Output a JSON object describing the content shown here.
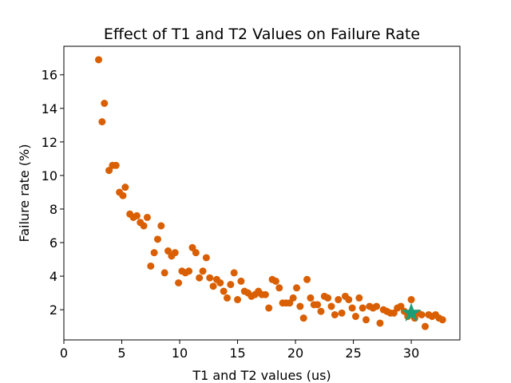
{
  "chart_data": {
    "type": "scatter",
    "title": "Effect of T1 and T2 Values on Failure Rate",
    "xlabel": "T1 and T2 values (us)",
    "ylabel": "Failure rate (%)",
    "xlim": [
      0,
      34.2
    ],
    "ylim": [
      0.2,
      17.7
    ],
    "xticks": [
      0,
      5,
      10,
      15,
      20,
      25,
      30
    ],
    "yticks": [
      2,
      4,
      6,
      8,
      10,
      12,
      14,
      16
    ],
    "grid": false,
    "series": [
      {
        "marker": "circle",
        "color": "#d95f02",
        "points": [
          [
            3.0,
            16.9
          ],
          [
            3.3,
            13.2
          ],
          [
            3.5,
            14.3
          ],
          [
            3.9,
            10.3
          ],
          [
            4.2,
            10.6
          ],
          [
            4.5,
            10.6
          ],
          [
            4.8,
            9.0
          ],
          [
            5.1,
            8.8
          ],
          [
            5.3,
            9.3
          ],
          [
            5.7,
            7.7
          ],
          [
            6.0,
            7.5
          ],
          [
            6.3,
            7.6
          ],
          [
            6.6,
            7.2
          ],
          [
            6.9,
            7.0
          ],
          [
            7.2,
            7.5
          ],
          [
            7.5,
            4.6
          ],
          [
            7.8,
            5.4
          ],
          [
            8.1,
            6.2
          ],
          [
            8.4,
            7.0
          ],
          [
            8.7,
            4.2
          ],
          [
            9.0,
            5.5
          ],
          [
            9.3,
            5.2
          ],
          [
            9.6,
            5.4
          ],
          [
            9.9,
            3.6
          ],
          [
            10.2,
            4.3
          ],
          [
            10.5,
            4.2
          ],
          [
            10.8,
            4.3
          ],
          [
            11.1,
            5.7
          ],
          [
            11.4,
            5.4
          ],
          [
            11.7,
            3.9
          ],
          [
            12.0,
            4.3
          ],
          [
            12.3,
            5.1
          ],
          [
            12.6,
            3.9
          ],
          [
            12.9,
            3.4
          ],
          [
            13.2,
            3.8
          ],
          [
            13.5,
            3.6
          ],
          [
            13.8,
            3.1
          ],
          [
            14.1,
            2.7
          ],
          [
            14.4,
            3.5
          ],
          [
            14.7,
            4.2
          ],
          [
            15.0,
            2.6
          ],
          [
            15.3,
            3.7
          ],
          [
            15.6,
            3.1
          ],
          [
            15.9,
            3.0
          ],
          [
            16.2,
            2.8
          ],
          [
            16.5,
            2.9
          ],
          [
            16.8,
            3.1
          ],
          [
            17.1,
            2.9
          ],
          [
            17.4,
            2.9
          ],
          [
            17.7,
            2.1
          ],
          [
            18.0,
            3.8
          ],
          [
            18.3,
            3.7
          ],
          [
            18.6,
            3.3
          ],
          [
            18.9,
            2.4
          ],
          [
            19.2,
            2.4
          ],
          [
            19.5,
            2.4
          ],
          [
            19.8,
            2.7
          ],
          [
            20.1,
            3.3
          ],
          [
            20.4,
            2.2
          ],
          [
            20.7,
            1.5
          ],
          [
            21.0,
            3.8
          ],
          [
            21.3,
            2.7
          ],
          [
            21.6,
            2.3
          ],
          [
            21.9,
            2.3
          ],
          [
            22.2,
            1.9
          ],
          [
            22.5,
            2.8
          ],
          [
            22.8,
            2.7
          ],
          [
            23.1,
            2.2
          ],
          [
            23.4,
            1.7
          ],
          [
            23.7,
            2.6
          ],
          [
            24.0,
            1.8
          ],
          [
            24.3,
            2.8
          ],
          [
            24.6,
            2.6
          ],
          [
            24.9,
            2.1
          ],
          [
            25.2,
            1.6
          ],
          [
            25.5,
            2.7
          ],
          [
            25.8,
            2.1
          ],
          [
            26.1,
            1.4
          ],
          [
            26.4,
            2.2
          ],
          [
            26.7,
            2.1
          ],
          [
            27.0,
            2.2
          ],
          [
            27.3,
            1.2
          ],
          [
            27.6,
            2.0
          ],
          [
            27.9,
            1.9
          ],
          [
            28.2,
            1.8
          ],
          [
            28.5,
            1.8
          ],
          [
            28.8,
            2.1
          ],
          [
            29.1,
            2.2
          ],
          [
            29.4,
            1.9
          ],
          [
            29.7,
            1.6
          ],
          [
            30.0,
            2.6
          ],
          [
            30.3,
            1.5
          ],
          [
            30.6,
            1.8
          ],
          [
            30.9,
            1.7
          ],
          [
            31.2,
            1.0
          ],
          [
            31.5,
            1.7
          ],
          [
            31.8,
            1.6
          ],
          [
            32.1,
            1.7
          ],
          [
            32.4,
            1.5
          ],
          [
            32.7,
            1.4
          ]
        ]
      },
      {
        "marker": "star",
        "color": "#1b9e77",
        "points": [
          [
            30.0,
            1.8
          ]
        ]
      }
    ]
  }
}
